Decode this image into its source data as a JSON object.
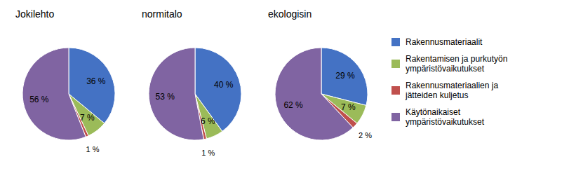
{
  "chart_data": [
    {
      "type": "pie",
      "title": "Jokilehto",
      "categories": [
        "Rakennusmateriaalit",
        "Rakentamisen ja purkutyön\nympäristövaikutukset",
        "Rakennusmateriaalien ja\njätteiden kuljetus",
        "Käytönaikaiset\nympäristövaikutukset"
      ],
      "values": [
        36,
        7,
        1,
        56
      ],
      "value_labels": [
        "36 %",
        "7 %",
        "1 %",
        "56 %"
      ],
      "colors": [
        "#4472C4",
        "#9BBB59",
        "#C0504D",
        "#8064A2"
      ],
      "data_labels": true,
      "legend": "right"
    },
    {
      "type": "pie",
      "title": "normitalo",
      "categories": [
        "Rakennusmateriaalit",
        "Rakentamisen ja purkutyön\nympäristövaikutukset",
        "Rakennusmateriaalien ja\njätteiden kuljetus",
        "Käytönaikaiset\nympäristövaikutukset"
      ],
      "values": [
        40,
        6,
        1,
        53
      ],
      "value_labels": [
        "40 %",
        "6 %",
        "1 %",
        "53 %"
      ],
      "colors": [
        "#4472C4",
        "#9BBB59",
        "#C0504D",
        "#8064A2"
      ],
      "data_labels": true,
      "legend": "right"
    },
    {
      "type": "pie",
      "title": "ekologisin",
      "categories": [
        "Rakennusmateriaalit",
        "Rakentamisen ja purkutyön\nympäristövaikutukset",
        "Rakennusmateriaalien ja\njätteiden kuljetus",
        "Käytönaikaiset\nympäristövaikutukset"
      ],
      "values": [
        29,
        7,
        2,
        62
      ],
      "value_labels": [
        "29 %",
        "7 %",
        "2 %",
        "62 %"
      ],
      "colors": [
        "#4472C4",
        "#9BBB59",
        "#C0504D",
        "#8064A2"
      ],
      "data_labels": true,
      "legend": "right"
    }
  ]
}
